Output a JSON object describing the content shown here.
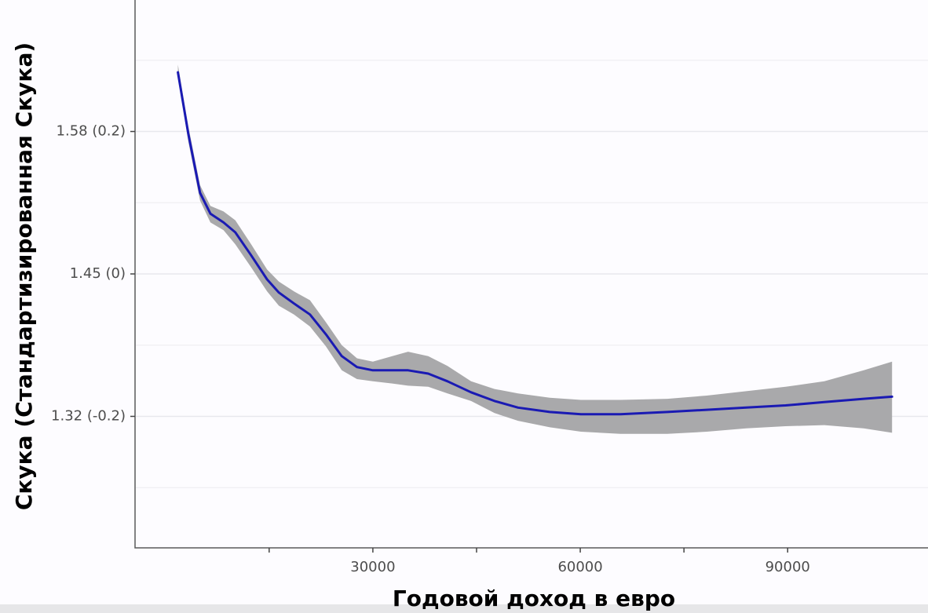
{
  "chart_data": {
    "type": "smooth",
    "xlabel": "Годовой доход в евро",
    "ylabel": "Скука (Стандартизированная Скука)",
    "xlim": [
      -4400,
      110300
    ],
    "ylim": [
      1.2,
      1.7
    ],
    "xticks": [
      30000,
      60000,
      90000
    ],
    "xminor": [
      15000,
      45000,
      75000
    ],
    "yticks": [
      {
        "value": 1.58,
        "label": "1.58 (0.2)"
      },
      {
        "value": 1.45,
        "label": "1.45 (0)"
      },
      {
        "value": 1.32,
        "label": "1.32 (-0.2)"
      }
    ],
    "yminor": [
      1.645,
      1.515,
      1.385,
      1.255
    ],
    "grid": true,
    "line_color": "#1a1ab3",
    "band_color": "#a9a9ab",
    "x": [
      1800,
      3300,
      5000,
      6500,
      8400,
      10100,
      12400,
      14700,
      16400,
      18600,
      20900,
      23200,
      25500,
      27700,
      30000,
      32800,
      35100,
      38000,
      40800,
      44200,
      47600,
      51000,
      55600,
      60100,
      65800,
      72600,
      78300,
      84000,
      89700,
      95300,
      101000,
      105100
    ],
    "values": [
      1.634,
      1.578,
      1.524,
      1.505,
      1.497,
      1.488,
      1.467,
      1.445,
      1.433,
      1.423,
      1.413,
      1.395,
      1.375,
      1.365,
      1.362,
      1.362,
      1.362,
      1.359,
      1.352,
      1.342,
      1.334,
      1.328,
      1.324,
      1.322,
      1.322,
      1.324,
      1.326,
      1.328,
      1.33,
      1.333,
      1.336,
      1.338
    ],
    "lower": [
      1.632,
      1.571,
      1.517,
      1.497,
      1.49,
      1.477,
      1.456,
      1.434,
      1.421,
      1.413,
      1.402,
      1.384,
      1.362,
      1.354,
      1.352,
      1.35,
      1.348,
      1.347,
      1.341,
      1.334,
      1.323,
      1.316,
      1.31,
      1.306,
      1.304,
      1.304,
      1.306,
      1.309,
      1.311,
      1.312,
      1.309,
      1.305
    ],
    "upper": [
      1.641,
      1.585,
      1.531,
      1.512,
      1.507,
      1.499,
      1.477,
      1.454,
      1.443,
      1.434,
      1.426,
      1.406,
      1.385,
      1.373,
      1.37,
      1.375,
      1.379,
      1.375,
      1.366,
      1.352,
      1.345,
      1.341,
      1.337,
      1.335,
      1.335,
      1.336,
      1.339,
      1.343,
      1.347,
      1.352,
      1.362,
      1.37
    ]
  }
}
